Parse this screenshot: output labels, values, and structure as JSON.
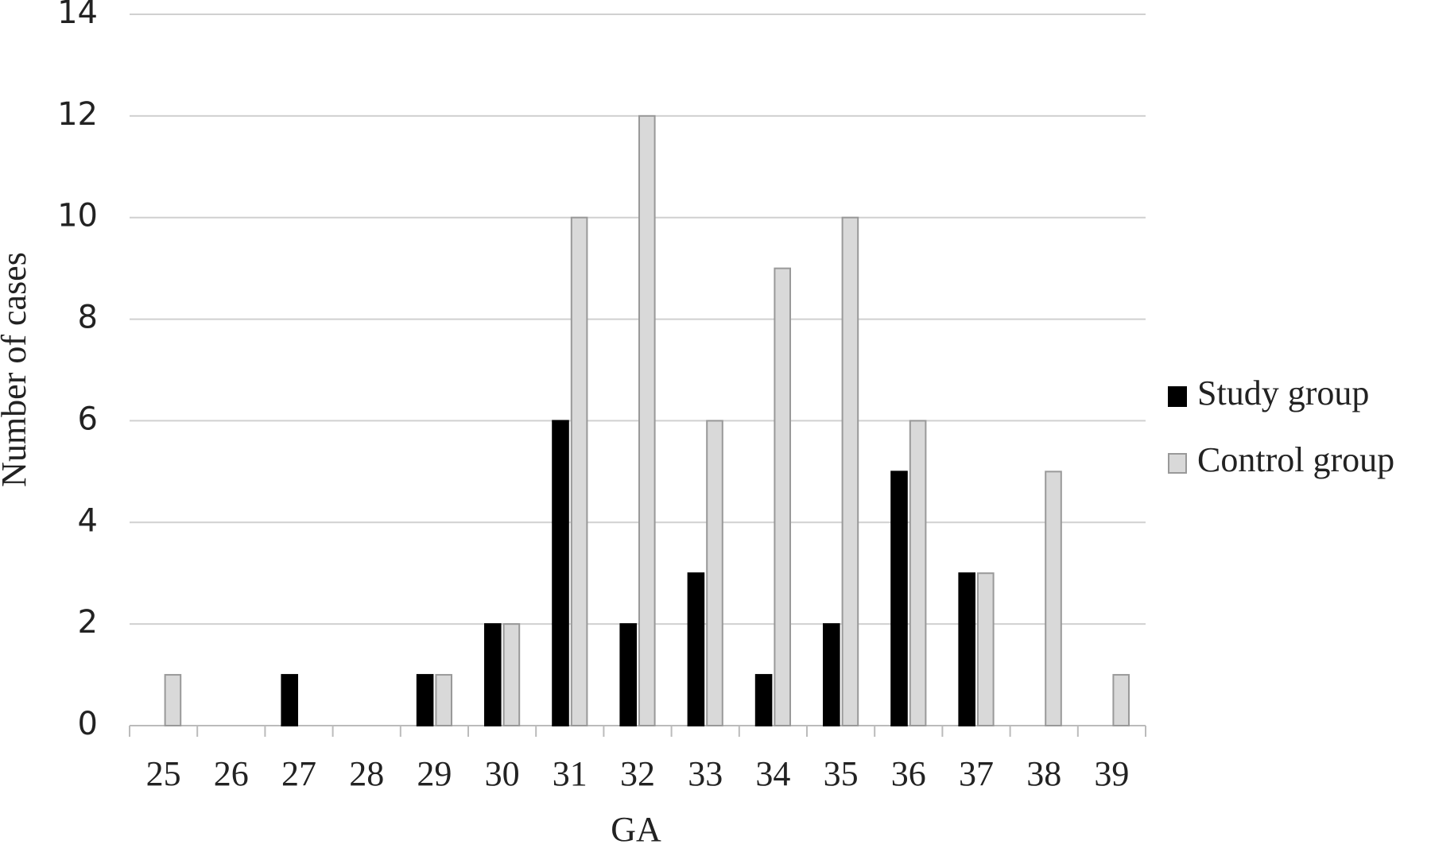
{
  "chart_data": {
    "type": "bar",
    "x_label": "GA",
    "y_label": "Number of cases",
    "categories": [
      "25",
      "26",
      "27",
      "28",
      "29",
      "30",
      "31",
      "32",
      "33",
      "34",
      "35",
      "36",
      "37",
      "38",
      "39"
    ],
    "series": [
      {
        "name": "Study group",
        "color": "#000000",
        "values": [
          0,
          0,
          1,
          0,
          1,
          2,
          6,
          2,
          3,
          1,
          2,
          5,
          3,
          0,
          0
        ]
      },
      {
        "name": "Control group",
        "color": "#d9d9d9",
        "values": [
          1,
          0,
          0,
          0,
          1,
          2,
          10,
          12,
          6,
          9,
          10,
          6,
          3,
          5,
          1
        ]
      }
    ],
    "ylim": [
      0,
      14
    ],
    "yticks": [
      0,
      2,
      4,
      6,
      8,
      10,
      12,
      14
    ],
    "grid": true,
    "legend": "right"
  }
}
